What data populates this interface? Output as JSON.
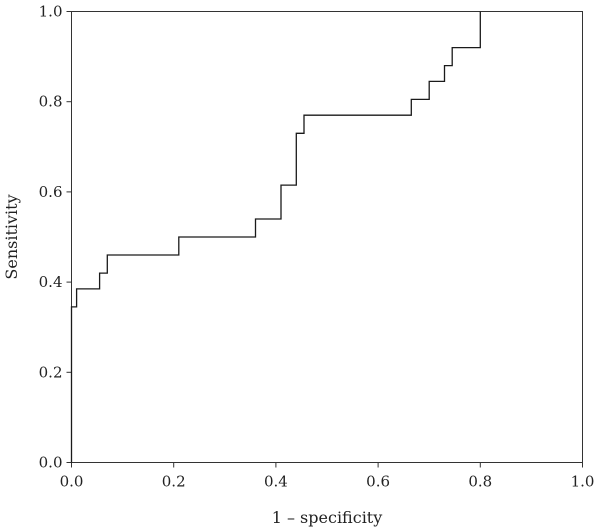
{
  "chart_data": {
    "type": "line",
    "title": "",
    "xlabel": "1 – specificity",
    "ylabel": "Sensitivity",
    "xlim": [
      0.0,
      1.0
    ],
    "ylim": [
      0.0,
      1.0
    ],
    "xticks": [
      "0.0",
      "0.2",
      "0.4",
      "0.6",
      "0.8",
      "1.0"
    ],
    "yticks": [
      "0.0",
      "0.2",
      "0.4",
      "0.6",
      "0.8",
      "1.0"
    ],
    "grid": false,
    "legend": "none",
    "series": [
      {
        "style": "step",
        "x": [
          0.0,
          0.0,
          0.01,
          0.01,
          0.055,
          0.055,
          0.07,
          0.07,
          0.21,
          0.21,
          0.36,
          0.36,
          0.41,
          0.41,
          0.44,
          0.44,
          0.455,
          0.455,
          0.665,
          0.665,
          0.7,
          0.7,
          0.73,
          0.73,
          0.745,
          0.745,
          0.8,
          0.8
        ],
        "y": [
          0.0,
          0.345,
          0.345,
          0.385,
          0.385,
          0.42,
          0.42,
          0.46,
          0.46,
          0.5,
          0.5,
          0.54,
          0.54,
          0.615,
          0.615,
          0.73,
          0.73,
          0.77,
          0.77,
          0.805,
          0.805,
          0.845,
          0.845,
          0.88,
          0.88,
          0.92,
          0.92,
          1.0
        ],
        "color": "#1a1a1a"
      }
    ]
  }
}
